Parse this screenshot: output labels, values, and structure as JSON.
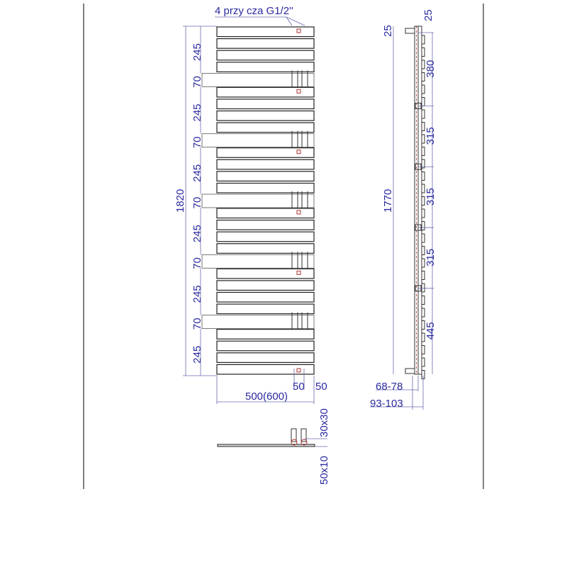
{
  "front_view": {
    "connection_note": "4 przy   cza G1/2''",
    "total_height": "1820",
    "group_height": "245",
    "gap_height": "70",
    "groups": 6,
    "bars_per_group": 4,
    "width": "500(600)",
    "pipe_spacing_a": "50",
    "pipe_spacing_b": "50"
  },
  "side_view": {
    "top_offset_left": "25",
    "top_offset_right": "25",
    "height": "1770",
    "bracket_spacings": [
      "380",
      "315",
      "315",
      "315",
      "445"
    ],
    "depth_inner": "68-78",
    "depth_outer": "93-103"
  },
  "bottom_view": {
    "pipe_section": "30x30",
    "bar_section": "50x10"
  },
  "colors": {
    "dimension_text": "#2a2aa0",
    "connection_marker": "#b03030",
    "outline": "#222222"
  }
}
